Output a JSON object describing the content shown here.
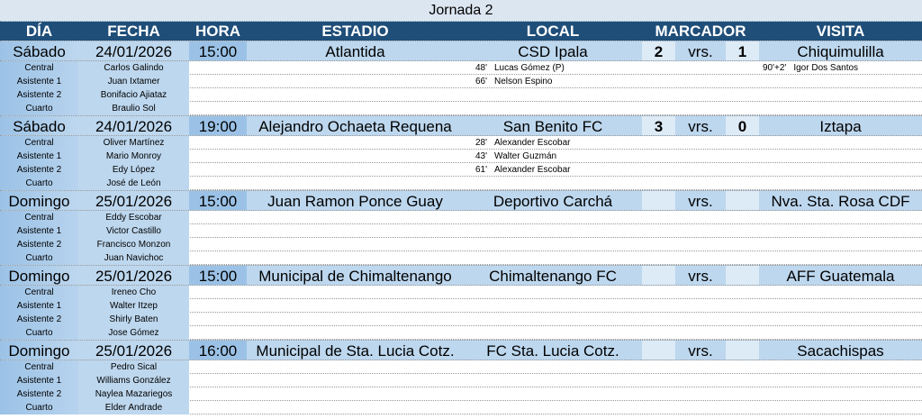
{
  "title": "Jornada 2",
  "headers": [
    "DÍA",
    "FECHA",
    "HORA",
    "ESTADIO",
    "LOCAL",
    "MARCADOR",
    "VISITA"
  ],
  "ref_roles": [
    "Central",
    "Asistente 1",
    "Asistente 2",
    "Cuarto"
  ],
  "vs_label": "vrs.",
  "colors": {
    "header_bg": "#1f4e79",
    "row_bg": "#bdd7ee",
    "title_bg": "#dce6f1"
  },
  "matches": [
    {
      "day": "Sábado",
      "date": "24/01/2026",
      "time": "15:00",
      "stadium": "Atlantida",
      "local": "CSD Ipala",
      "score_local": "2",
      "score_visit": "1",
      "visit": "Chiquimulilla",
      "referees": [
        "Carlos Galindo",
        "Juan Ixtamer",
        "Bonifacio Ajiataz",
        "Braulio Sol"
      ],
      "local_goals": [
        {
          "min": "48'",
          "player": "Lucas Gómez (P)"
        },
        {
          "min": "66'",
          "player": "Nelson Espino"
        }
      ],
      "visit_goals": [
        {
          "min": "90'+2'",
          "player": "Igor Dos Santos"
        }
      ]
    },
    {
      "day": "Sábado",
      "date": "24/01/2026",
      "time": "19:00",
      "stadium": "Alejandro Ochaeta Requena",
      "local": "San Benito FC",
      "score_local": "3",
      "score_visit": "0",
      "visit": "Iztapa",
      "referees": [
        "Oliver Martínez",
        "Mario Monroy",
        "Edy López",
        "José de León"
      ],
      "local_goals": [
        {
          "min": "28'",
          "player": "Alexander Escobar"
        },
        {
          "min": "43'",
          "player": "Walter Guzmán"
        },
        {
          "min": "61'",
          "player": "Alexander Escobar"
        }
      ],
      "visit_goals": []
    },
    {
      "day": "Domingo",
      "date": "25/01/2026",
      "time": "15:00",
      "stadium": "Juan Ramon Ponce Guay",
      "local": "Deportivo Carchá",
      "score_local": "",
      "score_visit": "",
      "visit": "Nva. Sta. Rosa CDF",
      "referees": [
        "Eddy Escobar",
        "Victor Castillo",
        "Francisco Monzon",
        "Juan Navichoc"
      ],
      "local_goals": [],
      "visit_goals": []
    },
    {
      "day": "Domingo",
      "date": "25/01/2026",
      "time": "15:00",
      "stadium": "Municipal de Chimaltenango",
      "local": "Chimaltenango FC",
      "score_local": "",
      "score_visit": "",
      "visit": "AFF Guatemala",
      "referees": [
        "Ireneo Cho",
        "Walter Itzep",
        "Shirly Baten",
        "Jose Gómez"
      ],
      "local_goals": [],
      "visit_goals": []
    },
    {
      "day": "Domingo",
      "date": "25/01/2026",
      "time": "16:00",
      "stadium": "Municipal de Sta. Lucia Cotz.",
      "local": "FC Sta. Lucia Cotz.",
      "score_local": "",
      "score_visit": "",
      "visit": "Sacachispas",
      "referees": [
        "Pedro Sical",
        "Williams González",
        "Naylea Mazariegos",
        "Elder Andrade"
      ],
      "local_goals": [],
      "visit_goals": []
    }
  ]
}
